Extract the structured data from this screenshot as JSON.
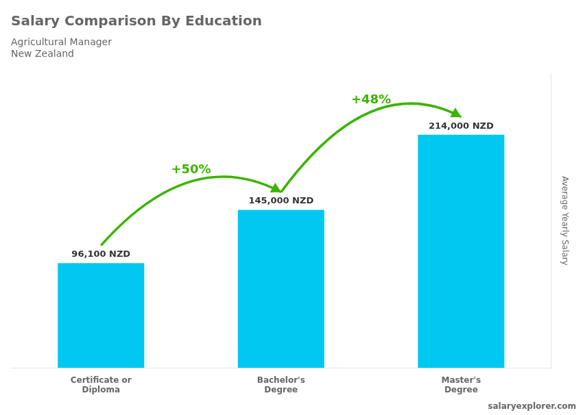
{
  "chart_data": {
    "type": "bar",
    "title": "Salary Comparison By Education",
    "subtitle": [
      "Agricultural Manager",
      "New Zealand"
    ],
    "ylabel": "Average Yearly Salary",
    "categories": [
      "Certificate or\nDiploma",
      "Bachelor's\nDegree",
      "Master's\nDegree"
    ],
    "values": [
      96100,
      145000,
      214000
    ],
    "value_labels": [
      "96,100 NZD",
      "145,000 NZD",
      "214,000 NZD"
    ],
    "data_labels": true,
    "color": "#00c8f0",
    "ylim": [
      0,
      270000
    ],
    "tick_labels": "x",
    "grid": false,
    "annotations": [
      {
        "text": "salaryexplorer.com"
      },
      {
        "text": "+50%",
        "from": "Certificate or\nDiploma",
        "to": "Bachelor's\nDegree",
        "color": "#3cb300"
      },
      {
        "text": "+48%",
        "from": "Bachelor's\nDegree",
        "to": "Master's\nDegree",
        "color": "#3cb300"
      }
    ]
  }
}
